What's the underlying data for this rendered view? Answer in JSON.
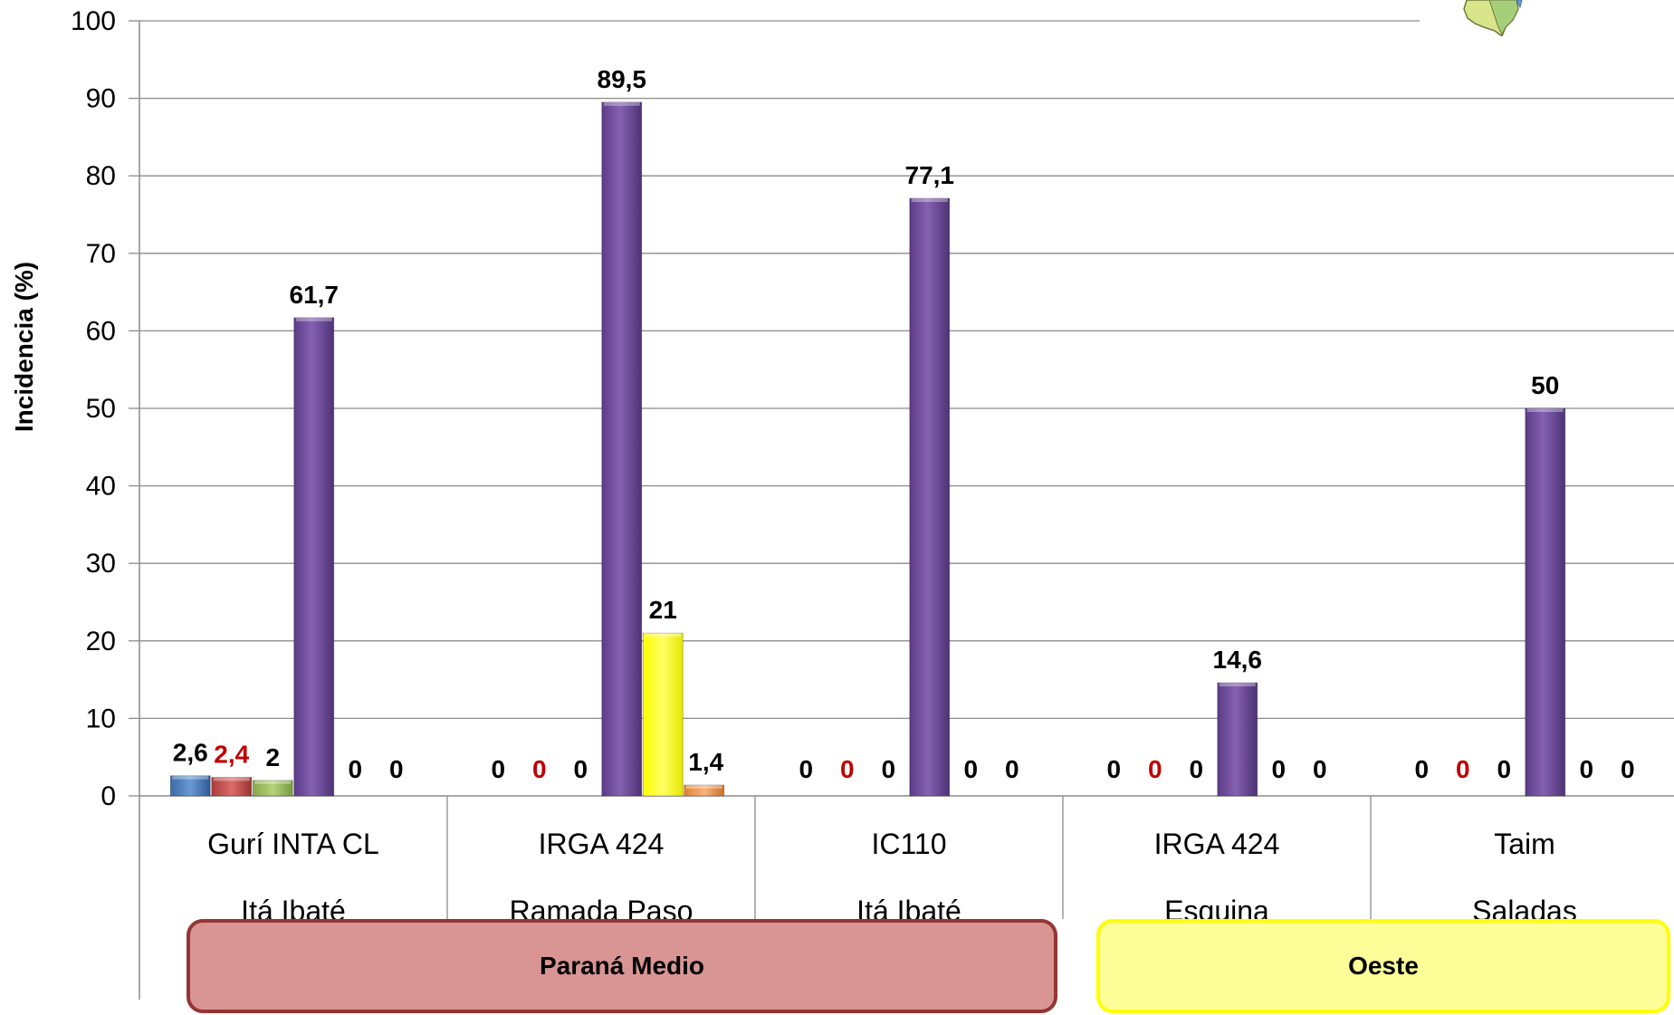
{
  "chart_data": {
    "type": "bar",
    "ylabel": "Incidencia (%)",
    "xlabel": "",
    "ylim": [
      0,
      100
    ],
    "yticks": [
      0,
      10,
      20,
      30,
      40,
      50,
      60,
      70,
      80,
      90,
      100
    ],
    "grid": true,
    "categories": [
      {
        "cultivar": "Gurí INTA CL",
        "location": "Itá Ibaté"
      },
      {
        "cultivar": "IRGA 424",
        "location": "Ramada Paso"
      },
      {
        "cultivar": "IC110",
        "location": "Itá Ibaté"
      },
      {
        "cultivar": "IRGA 424",
        "location": "Esquina"
      },
      {
        "cultivar": "Taim",
        "location": "Saladas"
      }
    ],
    "series": [
      {
        "color": "#4f81bd",
        "values": [
          2.6,
          0,
          0,
          0,
          0
        ],
        "labels": [
          "2,6",
          "0",
          "0",
          "0",
          "0"
        ],
        "label_color": "#000000"
      },
      {
        "color": "#c0504d",
        "values": [
          2.4,
          0,
          0,
          0,
          0
        ],
        "labels": [
          "2,4",
          "0",
          "0",
          "0",
          "0"
        ],
        "label_color": "#c00000"
      },
      {
        "color": "#9bbb59",
        "values": [
          2,
          0,
          0,
          0,
          0
        ],
        "labels": [
          "2",
          "0",
          "0",
          "0",
          "0"
        ],
        "label_color": "#000000"
      },
      {
        "color": "#7030a0",
        "values": [
          61.7,
          89.5,
          77.1,
          14.6,
          50
        ],
        "labels": [
          "61,7",
          "89,5",
          "77,1",
          "14,6",
          "50"
        ],
        "label_color": "#000000"
      },
      {
        "color": "#ffff00",
        "values": [
          0,
          21,
          0,
          0,
          0
        ],
        "labels": [
          "0",
          "21",
          "0",
          "0",
          "0"
        ],
        "label_color": "#000000"
      },
      {
        "color": "#f79646",
        "values": [
          0,
          1.4,
          0,
          0,
          0
        ],
        "labels": [
          "0",
          "1,4",
          "0",
          "0",
          "0"
        ],
        "label_color": "#000000"
      }
    ],
    "groups": [
      {
        "label": "Paraná Medio",
        "color": "#d99594",
        "border": "#943634"
      },
      {
        "label": "Oeste",
        "color": "#ffff99",
        "border": "#ffff00"
      }
    ]
  },
  "map_icon": "region-map-icon"
}
